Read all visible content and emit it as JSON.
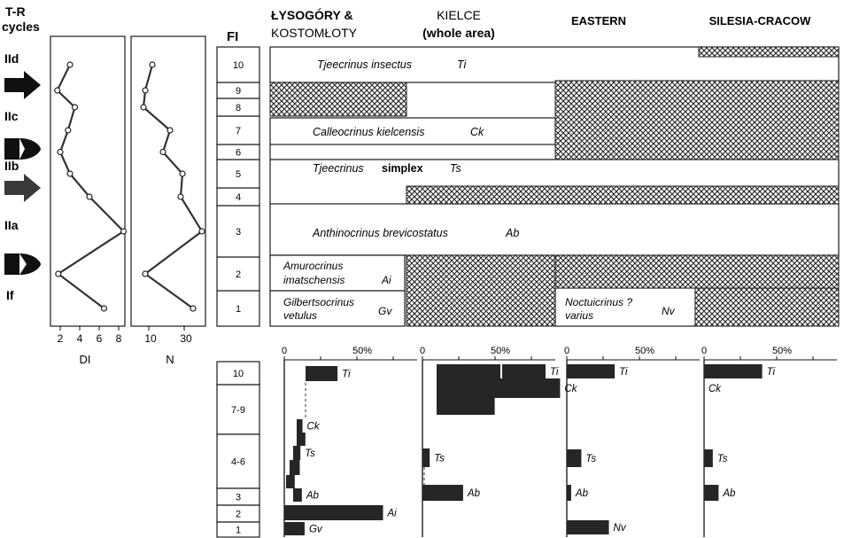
{
  "colors": {
    "ink": "#1a1a1a",
    "bar": "#262626",
    "hatch": "#222222",
    "paper": "#ffffff",
    "arrow_grey": "#3a3a3a"
  },
  "tr": {
    "title_line1": "T-R",
    "title_line2": "cycles",
    "cycles": [
      {
        "label": "IId",
        "symbol": "arrow-right-icon"
      },
      {
        "label": "IIc",
        "symbol": "half-moon-icon"
      },
      {
        "label": "IIb",
        "symbol": "arrow-right-icon"
      },
      {
        "label": "IIa",
        "symbol": "half-moon-icon"
      },
      {
        "label": "If",
        "symbol": ""
      }
    ]
  },
  "di_plot": {
    "xlabel": "DI",
    "ticks": [
      "2",
      "4",
      "6",
      "8"
    ],
    "points_by_fi_level": [
      6.5,
      1.8,
      8.5,
      5.0,
      3.0,
      2.0,
      2.8,
      3.5,
      1.7,
      3.0
    ]
  },
  "n_plot": {
    "xlabel": "N",
    "ticks": [
      "10",
      "30"
    ],
    "points_by_fi_level": [
      35,
      8,
      40,
      28,
      29,
      18,
      22,
      7,
      8,
      12
    ]
  },
  "fi": {
    "header": "FI",
    "levels": [
      "1",
      "2",
      "3",
      "4",
      "5",
      "6",
      "7",
      "8",
      "9",
      "10"
    ],
    "lower_groups": [
      "10",
      "7-9",
      "4-6",
      "3",
      "2",
      "1"
    ]
  },
  "regions": [
    {
      "line1": "ŁYSOGÓRY &",
      "line2": "KOSTOMŁOTY"
    },
    {
      "line1": "KIELCE",
      "line2": "(whole area)"
    },
    {
      "line1": "EASTERN",
      "line2": ""
    },
    {
      "line1": "SILESIA-CRACOW",
      "line2": ""
    }
  ],
  "taxa": [
    {
      "name": "Tjeecrinus insectus",
      "code": "Ti"
    },
    {
      "name": "Calleocrinus kielcensis",
      "code": "Ck"
    },
    {
      "name_part1": "Tjeecrinus",
      "name_part2": "simplex",
      "code": "Ts"
    },
    {
      "name": "Anthinocrinus brevicostatus",
      "code": "Ab"
    },
    {
      "name_line1": "Amurocrinus",
      "name_line2": "imatschensis",
      "code": "Ai"
    },
    {
      "name_line1": "Gilbertsocrinus",
      "name_line2": "vetulus",
      "code": "Gv"
    },
    {
      "name_line1": "Noctuicrinus ?",
      "name_line2": "varius",
      "code": "Nv"
    }
  ],
  "chart_data": {
    "type": "bar",
    "axis_ticks": [
      "0",
      "50%"
    ],
    "groups": [
      "10",
      "7-9",
      "4-6",
      "3",
      "2",
      "1"
    ],
    "panels": [
      {
        "region": "ŁYSOGÓRY & KOSTOMŁOTY",
        "bars": [
          {
            "group": "10",
            "code": "Ti",
            "value": 22
          },
          {
            "group": "7-9",
            "code": "Ck",
            "value": 4
          },
          {
            "group": "7-9",
            "code": "Ck",
            "value": 6
          },
          {
            "group": "4-6",
            "code": "Ts",
            "value": 5
          },
          {
            "group": "4-6",
            "code": "Ts",
            "value": 7
          },
          {
            "group": "4-6",
            "code": "Ts",
            "value": 6
          },
          {
            "group": "3",
            "code": "Ab",
            "value": 6
          },
          {
            "group": "2",
            "code": "Ai",
            "value": 68
          },
          {
            "group": "1",
            "code": "Gv",
            "value": 14
          }
        ]
      },
      {
        "region": "KIELCE (whole area)",
        "bars": [
          {
            "group": "10",
            "code": "Ti",
            "value": 75
          },
          {
            "group": "7-9",
            "code": "Ck",
            "value": 85
          },
          {
            "group": "7-9",
            "code": "Ck",
            "value": 40
          },
          {
            "group": "4-6",
            "code": "Ts",
            "value": 5
          },
          {
            "group": "3",
            "code": "Ab",
            "value": 28
          }
        ]
      },
      {
        "region": "EASTERN",
        "bars": [
          {
            "group": "10",
            "code": "Ti",
            "value": 33
          },
          {
            "group": "4-6",
            "code": "Ts",
            "value": 10
          },
          {
            "group": "3",
            "code": "Ab",
            "value": 3
          },
          {
            "group": "1",
            "code": "Nv",
            "value": 29
          }
        ]
      },
      {
        "region": "SILESIA-CRACOW",
        "bars": [
          {
            "group": "10",
            "code": "Ti",
            "value": 40
          },
          {
            "group": "4-6",
            "code": "Ts",
            "value": 6
          },
          {
            "group": "3",
            "code": "Ab",
            "value": 10
          }
        ]
      }
    ],
    "extra_labels": [
      {
        "panel": "SILESIA-CRACOW",
        "text": "Ck"
      }
    ]
  }
}
